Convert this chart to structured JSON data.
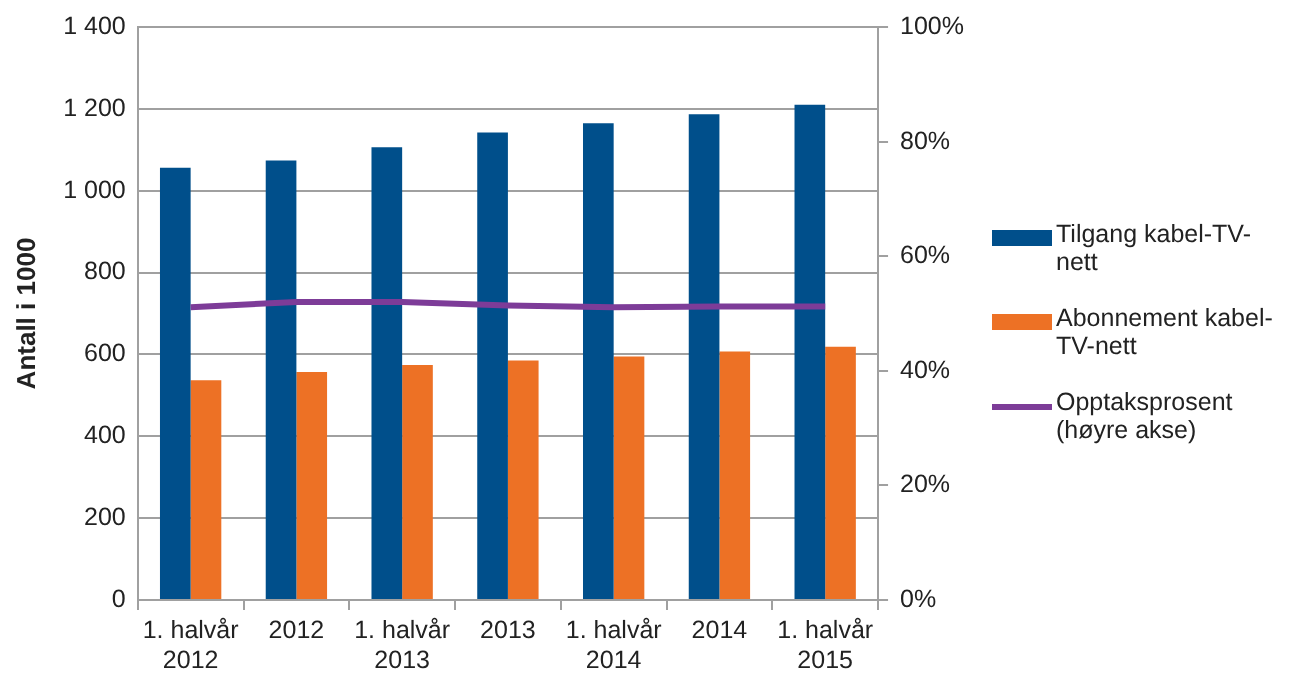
{
  "chart_data": {
    "type": "bar",
    "ylabel": "Antall i 1000",
    "categories": [
      "1. halvår\n2012",
      "2012",
      "1. halvår\n2013",
      "2013",
      "1. halvår\n2014",
      "2014",
      "1. halvår\n2015"
    ],
    "series": [
      {
        "name": "Tilgang kabel-TV-nett",
        "color": "#004f8b",
        "values": [
          1056,
          1074,
          1106,
          1142,
          1165,
          1187,
          1210
        ]
      },
      {
        "name": "Abonnement kabel-TV-nett",
        "color": "#ed7125",
        "values": [
          537,
          557,
          574,
          585,
          595,
          607,
          619
        ]
      },
      {
        "name": "Opptaksprosent (høyre akse)",
        "type": "line",
        "axis": "y2",
        "color": "#7d3c98",
        "values": [
          51.1,
          52.0,
          52.0,
          51.4,
          51.1,
          51.2,
          51.2
        ]
      }
    ],
    "ylim": [
      0,
      1400
    ],
    "yticks": [
      0,
      200,
      400,
      600,
      800,
      {
        "value": 1000,
        "label": "1 000"
      },
      {
        "value": 1200,
        "label": "1 200"
      },
      {
        "value": 1400,
        "label": "1 400"
      }
    ],
    "y2lim": [
      0,
      100
    ],
    "y2ticks": [
      {
        "value": 0,
        "label": "0%"
      },
      {
        "value": 20,
        "label": "20%"
      },
      {
        "value": 40,
        "label": "40%"
      },
      {
        "value": 60,
        "label": "60%"
      },
      {
        "value": 80,
        "label": "80%"
      },
      {
        "value": 100,
        "label": "100%"
      }
    ],
    "grid": "y",
    "legend": "right",
    "marker": "none"
  }
}
